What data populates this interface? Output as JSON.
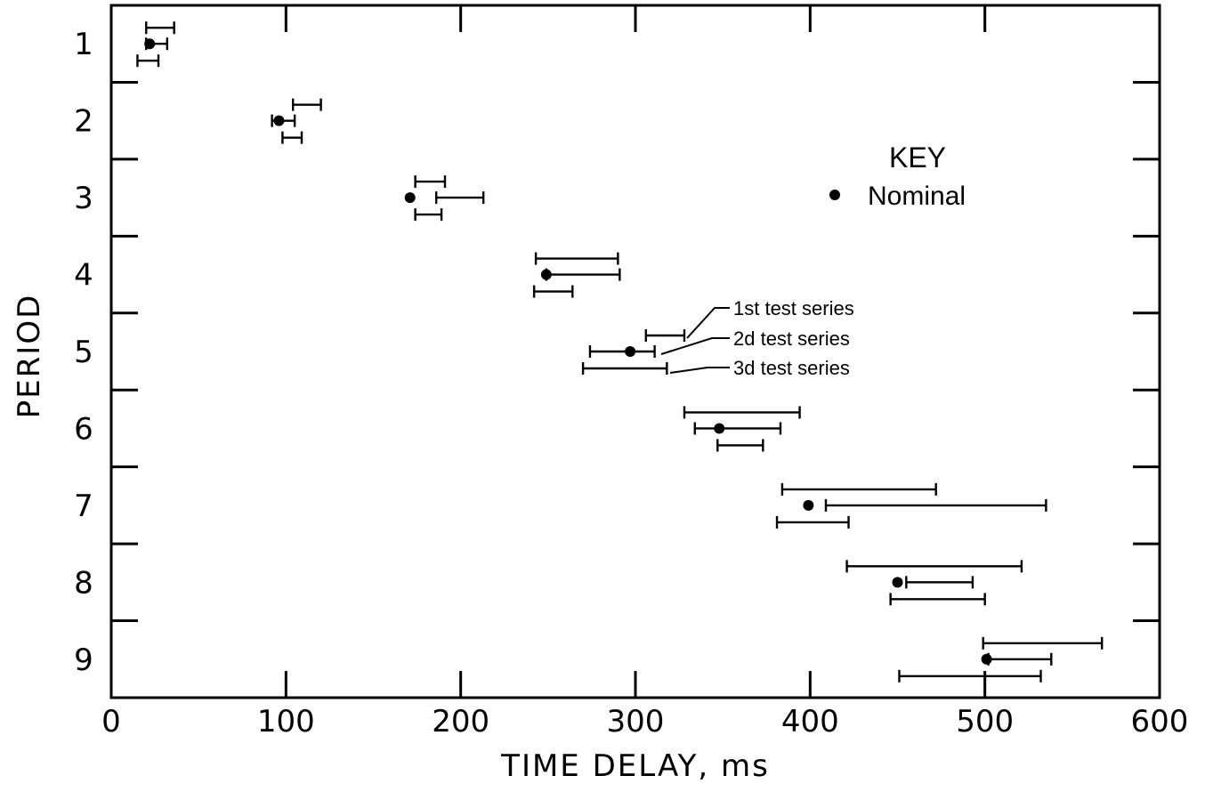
{
  "chart_data": {
    "type": "scatter",
    "xlabel": "TIME DELAY, ms",
    "ylabel": "PERIOD",
    "xlim": [
      0,
      600
    ],
    "x_ticks": [
      "0",
      "100",
      "200",
      "300",
      "400",
      "500",
      "600"
    ],
    "y_ticks": [
      "1",
      "2",
      "3",
      "4",
      "5",
      "6",
      "7",
      "8",
      "9"
    ],
    "key": {
      "title": "KEY",
      "nominal_label": "Nominal"
    },
    "callouts": {
      "first": "1st test series",
      "second": "2d test series",
      "third": "3d test series"
    },
    "nominal": [
      {
        "period": 1,
        "x": 22
      },
      {
        "period": 2,
        "x": 96
      },
      {
        "period": 3,
        "x": 171
      },
      {
        "period": 4,
        "x": 249
      },
      {
        "period": 5,
        "x": 297
      },
      {
        "period": 6,
        "x": 348
      },
      {
        "period": 7,
        "x": 399
      },
      {
        "period": 8,
        "x": 450
      },
      {
        "period": 9,
        "x": 501
      }
    ],
    "series": [
      {
        "name": "1st test series",
        "ranges": [
          {
            "period": 1,
            "min": 20,
            "max": 36
          },
          {
            "period": 2,
            "min": 104,
            "max": 120
          },
          {
            "period": 3,
            "min": 174,
            "max": 191
          },
          {
            "period": 4,
            "min": 243,
            "max": 290
          },
          {
            "period": 5,
            "min": 306,
            "max": 328
          },
          {
            "period": 6,
            "min": 328,
            "max": 394
          },
          {
            "period": 7,
            "min": 384,
            "max": 472
          },
          {
            "period": 8,
            "min": 421,
            "max": 521
          },
          {
            "period": 9,
            "min": 499,
            "max": 567
          }
        ]
      },
      {
        "name": "2d test series",
        "ranges": [
          {
            "period": 1,
            "min": 20,
            "max": 32
          },
          {
            "period": 2,
            "min": 92,
            "max": 105
          },
          {
            "period": 3,
            "min": 186,
            "max": 213
          },
          {
            "period": 4,
            "min": 249,
            "max": 291
          },
          {
            "period": 5,
            "min": 274,
            "max": 311
          },
          {
            "period": 6,
            "min": 334,
            "max": 383
          },
          {
            "period": 7,
            "min": 409,
            "max": 535
          },
          {
            "period": 8,
            "min": 455,
            "max": 493
          },
          {
            "period": 9,
            "min": 502,
            "max": 538
          }
        ]
      },
      {
        "name": "3d test series",
        "ranges": [
          {
            "period": 1,
            "min": 15,
            "max": 27
          },
          {
            "period": 2,
            "min": 98,
            "max": 109
          },
          {
            "period": 3,
            "min": 174,
            "max": 189
          },
          {
            "period": 4,
            "min": 242,
            "max": 264
          },
          {
            "period": 5,
            "min": 270,
            "max": 318
          },
          {
            "period": 6,
            "min": 347,
            "max": 373
          },
          {
            "period": 7,
            "min": 381,
            "max": 422
          },
          {
            "period": 8,
            "min": 446,
            "max": 500
          },
          {
            "period": 9,
            "min": 451,
            "max": 532
          }
        ]
      }
    ]
  }
}
